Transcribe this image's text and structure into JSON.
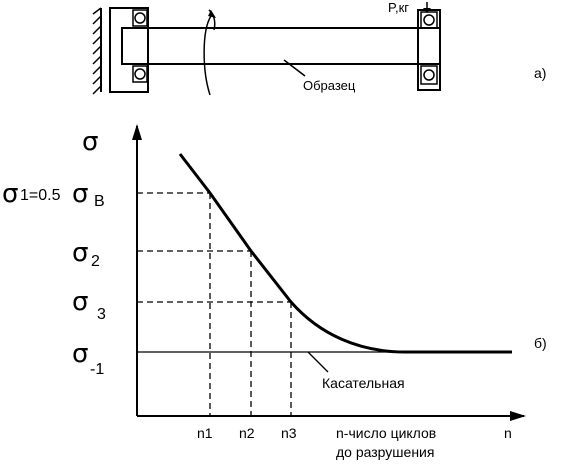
{
  "top_diagram": {
    "load_label": "P,кг",
    "specimen_label": "Образец",
    "panel_label": "а)"
  },
  "graph": {
    "panel_label": "б)",
    "y_axis_symbol": "σ",
    "sigma1_prefix": "σ",
    "sigma1_text": "1=0.5",
    "sigma1_b_symbol": "σ",
    "sigma1_b_sub": "В",
    "sigma2_symbol": "σ",
    "sigma2_sub": "2",
    "sigma3_symbol": "σ",
    "sigma3_sub": "3",
    "sigma_minus1_symbol": "σ",
    "sigma_minus1_sub": "-1",
    "tangent_label": "Касательная",
    "x_ticks": [
      "n1",
      "n2",
      "n3"
    ],
    "x_axis_label_line1": "n-число циклов",
    "x_axis_label_line2": "до разрушения",
    "x_axis_symbol": "n"
  }
}
